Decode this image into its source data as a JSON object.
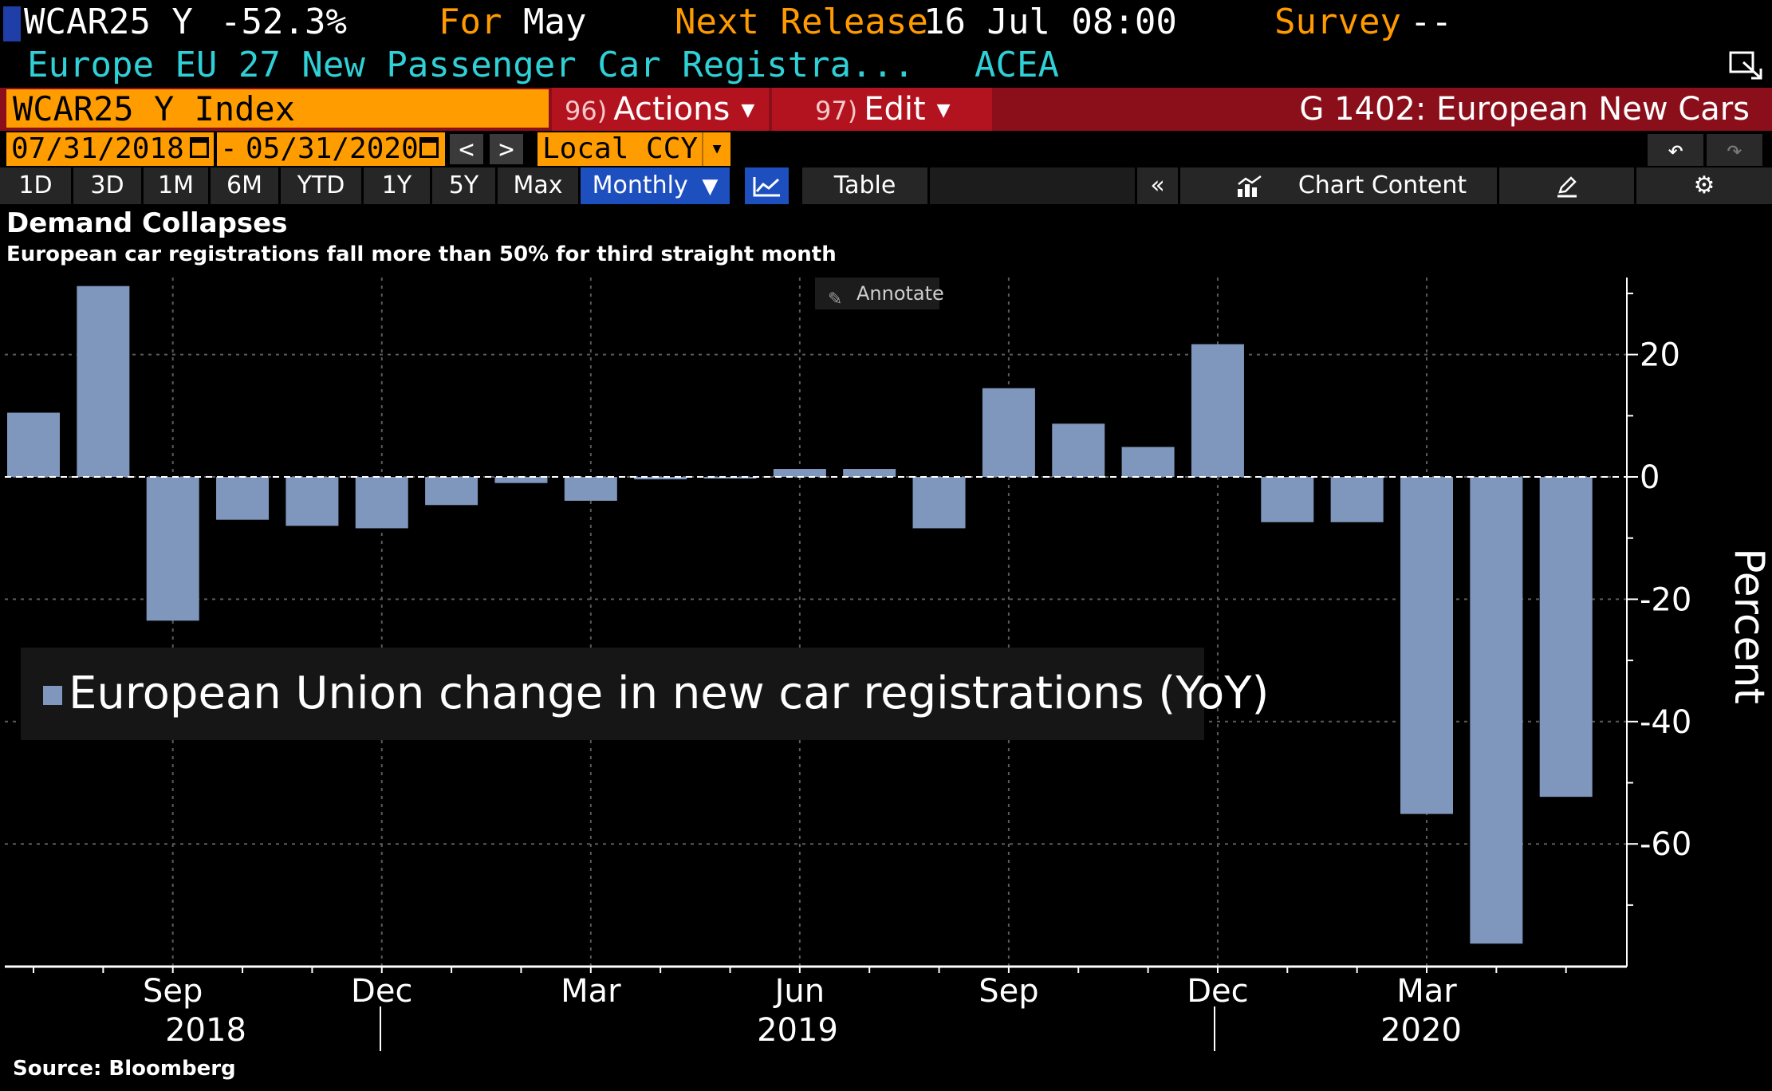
{
  "header": {
    "ticker": "WCAR25 Y",
    "change": "-52.3%",
    "for_label": "For",
    "for_value": "May",
    "next_release_label": "Next Release",
    "next_release_value": "16 Jul 08:00",
    "survey_label": "Survey",
    "survey_value": "--",
    "description": "Europe EU 27 New Passenger Car Registra...",
    "source_org": "ACEA"
  },
  "command_bar": {
    "security": "WCAR25 Y Index",
    "actions_num": "96)",
    "actions_label": "Actions",
    "edit_num": "97)",
    "edit_label": "Edit",
    "page_title": "G 1402: European New Cars"
  },
  "date_row": {
    "start_date": "07/31/2018",
    "separator": "-",
    "end_date": "05/31/2020",
    "prev": "<",
    "next": ">",
    "currency": "Local CCY"
  },
  "range_bar": {
    "ranges": [
      "1D",
      "3D",
      "1M",
      "6M",
      "YTD",
      "1Y",
      "5Y",
      "Max"
    ],
    "period": "Monthly",
    "table": "Table",
    "collapse": "«",
    "chart_content": "Chart Content"
  },
  "annotate_label": "Annotate",
  "source": "Source: Bloomberg",
  "colors": {
    "bar": "#7f97bd",
    "ticker_box": "#ff9d00",
    "command_bar": "#8b0f1a",
    "header_text": "#2fd0d6",
    "active_button": "#1d4fbf"
  },
  "chart_data": {
    "type": "bar",
    "title": "Demand Collapses",
    "subtitle": "European car registrations fall more than 50% for third straight month",
    "ylabel": "Percent",
    "ylim": [
      -80,
      33
    ],
    "yticks": [
      20,
      0,
      -20,
      -40,
      -60
    ],
    "grid": true,
    "legend_position": "bottom-left",
    "categories": [
      "Jul 2018",
      "Aug 2018",
      "Sep 2018",
      "Oct 2018",
      "Nov 2018",
      "Dec 2018",
      "Jan 2019",
      "Feb 2019",
      "Mar 2019",
      "Apr 2019",
      "May 2019",
      "Jun 2019",
      "Jul 2019",
      "Aug 2019",
      "Sep 2019",
      "Oct 2019",
      "Nov 2019",
      "Dec 2019",
      "Jan 2020",
      "Feb 2020",
      "Mar 2020",
      "Apr 2020",
      "May 2020"
    ],
    "series": [
      {
        "name": "European Union change in new car registrations (YoY)",
        "values": [
          10.5,
          31.2,
          -23.5,
          -7.0,
          -8.0,
          -8.4,
          -4.6,
          -1.0,
          -3.9,
          -0.4,
          0.0,
          1.3,
          1.3,
          -8.4,
          14.5,
          8.7,
          4.9,
          21.7,
          -7.4,
          -7.4,
          -55.1,
          -76.3,
          -52.3
        ]
      }
    ],
    "x_tick_labels": [
      "Sep",
      "Dec",
      "Mar",
      "Jun",
      "Sep",
      "Dec",
      "Mar"
    ],
    "x_year_labels": [
      "2018",
      "2019",
      "2020"
    ]
  }
}
